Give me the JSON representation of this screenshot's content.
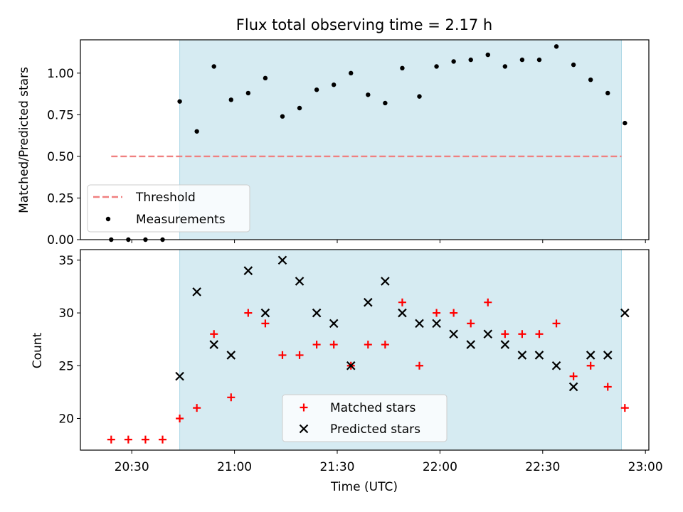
{
  "title": "Flux total observing time = 2.17 h",
  "colors": {
    "shade": "#add8e6",
    "threshold": "#f08080",
    "matched": "#ff0000",
    "predicted": "#000000",
    "measurement": "#000000"
  },
  "chart_data": [
    {
      "type": "scatter",
      "panel": "top",
      "ylabel": "Matched/Predicted stars",
      "ylim": [
        0.0,
        1.2
      ],
      "yticks": [
        "0.00",
        "0.25",
        "0.50",
        "0.75",
        "1.00"
      ],
      "xlim": [
        "20:15",
        "23:01"
      ],
      "shaded_span": [
        "20:44",
        "22:53"
      ],
      "threshold": {
        "name": "Threshold",
        "y": 0.5,
        "x": [
          "20:24",
          "22:53"
        ]
      },
      "series": [
        {
          "name": "Measurements",
          "points": [
            [
              "20:24",
              0.0
            ],
            [
              "20:29",
              0.0
            ],
            [
              "20:34",
              0.0
            ],
            [
              "20:39",
              0.0
            ],
            [
              "20:44",
              0.83
            ],
            [
              "20:49",
              0.65
            ],
            [
              "20:54",
              1.04
            ],
            [
              "20:59",
              0.84
            ],
            [
              "21:04",
              0.88
            ],
            [
              "21:09",
              0.97
            ],
            [
              "21:14",
              0.74
            ],
            [
              "21:19",
              0.79
            ],
            [
              "21:24",
              0.9
            ],
            [
              "21:29",
              0.93
            ],
            [
              "21:34",
              1.0
            ],
            [
              "21:39",
              0.87
            ],
            [
              "21:44",
              0.82
            ],
            [
              "21:49",
              1.03
            ],
            [
              "21:54",
              0.86
            ],
            [
              "21:59",
              1.04
            ],
            [
              "22:04",
              1.07
            ],
            [
              "22:09",
              1.08
            ],
            [
              "22:14",
              1.11
            ],
            [
              "22:19",
              1.04
            ],
            [
              "22:24",
              1.08
            ],
            [
              "22:29",
              1.08
            ],
            [
              "22:34",
              1.16
            ],
            [
              "22:39",
              1.05
            ],
            [
              "22:44",
              0.96
            ],
            [
              "22:49",
              0.88
            ],
            [
              "22:54",
              0.7
            ]
          ]
        }
      ],
      "legend": {
        "location": "lower-left",
        "entries": [
          "Threshold",
          "Measurements"
        ]
      }
    },
    {
      "type": "scatter",
      "panel": "bottom",
      "xlabel": "Time (UTC)",
      "ylabel": "Count",
      "ylim": [
        17,
        36
      ],
      "yticks": [
        "20",
        "25",
        "30",
        "35"
      ],
      "xlim": [
        "20:15",
        "23:01"
      ],
      "xticks": [
        "20:30",
        "21:00",
        "21:30",
        "22:00",
        "22:30",
        "23:00"
      ],
      "shaded_span": [
        "20:44",
        "22:53"
      ],
      "series": [
        {
          "name": "Matched stars",
          "points": [
            [
              "20:24",
              18
            ],
            [
              "20:29",
              18
            ],
            [
              "20:34",
              18
            ],
            [
              "20:39",
              18
            ],
            [
              "20:44",
              20
            ],
            [
              "20:49",
              21
            ],
            [
              "20:54",
              28
            ],
            [
              "20:59",
              22
            ],
            [
              "21:04",
              30
            ],
            [
              "21:09",
              29
            ],
            [
              "21:14",
              26
            ],
            [
              "21:19",
              26
            ],
            [
              "21:24",
              27
            ],
            [
              "21:29",
              27
            ],
            [
              "21:34",
              25
            ],
            [
              "21:39",
              27
            ],
            [
              "21:44",
              27
            ],
            [
              "21:49",
              31
            ],
            [
              "21:54",
              25
            ],
            [
              "21:59",
              30
            ],
            [
              "22:04",
              30
            ],
            [
              "22:09",
              29
            ],
            [
              "22:14",
              31
            ],
            [
              "22:19",
              28
            ],
            [
              "22:24",
              28
            ],
            [
              "22:29",
              28
            ],
            [
              "22:34",
              29
            ],
            [
              "22:39",
              24
            ],
            [
              "22:44",
              25
            ],
            [
              "22:49",
              23
            ],
            [
              "22:54",
              21
            ]
          ]
        },
        {
          "name": "Predicted stars",
          "points": [
            [
              "20:44",
              24
            ],
            [
              "20:49",
              32
            ],
            [
              "20:54",
              27
            ],
            [
              "20:59",
              26
            ],
            [
              "21:04",
              34
            ],
            [
              "21:09",
              30
            ],
            [
              "21:14",
              35
            ],
            [
              "21:19",
              33
            ],
            [
              "21:24",
              30
            ],
            [
              "21:29",
              29
            ],
            [
              "21:34",
              25
            ],
            [
              "21:39",
              31
            ],
            [
              "21:44",
              33
            ],
            [
              "21:49",
              30
            ],
            [
              "21:54",
              29
            ],
            [
              "21:59",
              29
            ],
            [
              "22:04",
              28
            ],
            [
              "22:09",
              27
            ],
            [
              "22:14",
              28
            ],
            [
              "22:19",
              27
            ],
            [
              "22:24",
              26
            ],
            [
              "22:29",
              26
            ],
            [
              "22:34",
              25
            ],
            [
              "22:39",
              23
            ],
            [
              "22:44",
              26
            ],
            [
              "22:49",
              26
            ],
            [
              "22:54",
              30
            ]
          ]
        }
      ],
      "legend": {
        "location": "lower-center",
        "entries": [
          "Matched stars",
          "Predicted stars"
        ]
      }
    }
  ]
}
